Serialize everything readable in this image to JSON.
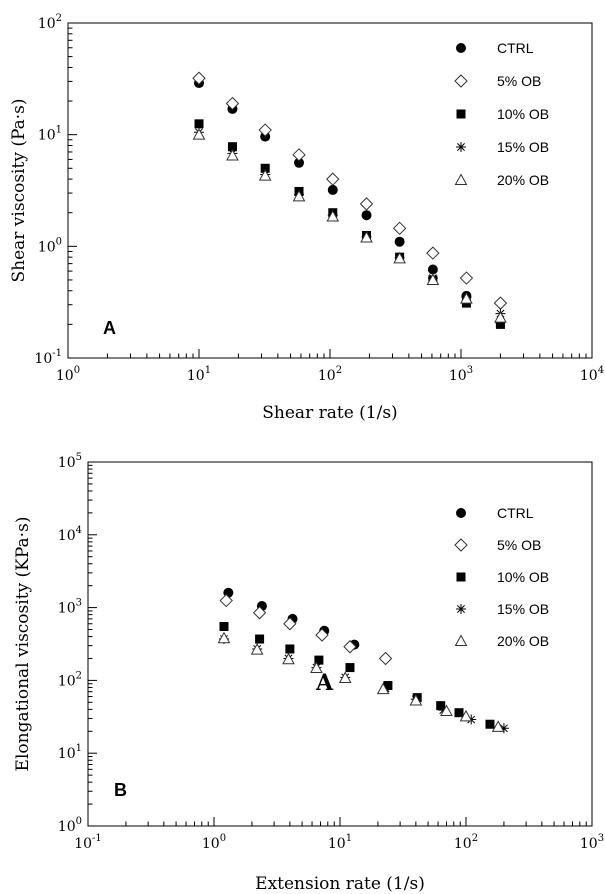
{
  "chart_data": [
    {
      "type": "scatter",
      "panel_label": "A",
      "xlabel": "Shear rate (1/s)",
      "ylabel": "Shear viscosity (Pa·s)",
      "xscale": "log",
      "yscale": "log",
      "xlim": [
        1,
        10000
      ],
      "ylim": [
        0.1,
        100
      ],
      "x_ticks": [
        {
          "base": "10",
          "exp": "0",
          "value": 1
        },
        {
          "base": "10",
          "exp": "1",
          "value": 10
        },
        {
          "base": "10",
          "exp": "2",
          "value": 100
        },
        {
          "base": "10",
          "exp": "3",
          "value": 1000
        },
        {
          "base": "10",
          "exp": "4",
          "value": 10000
        }
      ],
      "y_ticks": [
        {
          "base": "10",
          "exp": "-1",
          "value": 0.1
        },
        {
          "base": "10",
          "exp": "0",
          "value": 1
        },
        {
          "base": "10",
          "exp": "1",
          "value": 10
        },
        {
          "base": "10",
          "exp": "2",
          "value": 100
        }
      ],
      "grid": false,
      "legend_position": "top-right",
      "series": [
        {
          "name": "CTRL",
          "marker": "circle",
          "x": [
            10,
            18,
            32,
            58,
            105,
            190,
            340,
            610,
            1100,
            2000
          ],
          "y": [
            29,
            17,
            9.6,
            5.6,
            3.2,
            1.9,
            1.1,
            0.62,
            0.36,
            0.21
          ]
        },
        {
          "name": "5% OB",
          "marker": "diamond",
          "x": [
            10,
            18,
            32,
            58,
            105,
            190,
            340,
            610,
            1100,
            2000
          ],
          "y": [
            32,
            19,
            11,
            6.6,
            4.0,
            2.4,
            1.45,
            0.87,
            0.52,
            0.31
          ]
        },
        {
          "name": "10% OB",
          "marker": "square",
          "x": [
            10,
            18,
            32,
            58,
            105,
            190,
            340,
            610,
            1100,
            2000
          ],
          "y": [
            12.5,
            7.8,
            5.0,
            3.1,
            2.0,
            1.25,
            0.8,
            0.5,
            0.31,
            0.2
          ]
        },
        {
          "name": "15% OB",
          "marker": "asterisk",
          "x": [
            10,
            18,
            32,
            58,
            105,
            190,
            340,
            610,
            1100,
            2000
          ],
          "y": [
            10.5,
            6.8,
            4.4,
            2.9,
            1.9,
            1.22,
            0.79,
            0.52,
            0.35,
            0.25
          ]
        },
        {
          "name": "20% OB",
          "marker": "triangle",
          "x": [
            10,
            18,
            32,
            58,
            105,
            190,
            340,
            610,
            1100,
            2000
          ],
          "y": [
            10,
            6.5,
            4.3,
            2.8,
            1.85,
            1.2,
            0.78,
            0.5,
            0.34,
            0.23
          ]
        }
      ]
    },
    {
      "type": "scatter",
      "panel_label": "B",
      "overlay_label": "A",
      "xlabel": "Extension rate (1/s)",
      "ylabel": "Elongational viscosity (KPa·s)",
      "xscale": "log",
      "yscale": "log",
      "xlim": [
        0.1,
        1000
      ],
      "ylim": [
        1,
        100000
      ],
      "x_ticks": [
        {
          "base": "10",
          "exp": "-1",
          "value": 0.1
        },
        {
          "base": "10",
          "exp": "0",
          "value": 1
        },
        {
          "base": "10",
          "exp": "1",
          "value": 10
        },
        {
          "base": "10",
          "exp": "2",
          "value": 100
        },
        {
          "base": "10",
          "exp": "3",
          "value": 1000
        }
      ],
      "y_ticks": [
        {
          "base": "10",
          "exp": "0",
          "value": 1
        },
        {
          "base": "10",
          "exp": "1",
          "value": 10
        },
        {
          "base": "10",
          "exp": "2",
          "value": 100
        },
        {
          "base": "10",
          "exp": "3",
          "value": 1000
        },
        {
          "base": "10",
          "exp": "4",
          "value": 10000
        },
        {
          "base": "10",
          "exp": "5",
          "value": 100000
        }
      ],
      "grid": false,
      "legend_position": "top-right",
      "series": [
        {
          "name": "CTRL",
          "marker": "circle",
          "x": [
            1.3,
            2.4,
            4.2,
            7.5,
            13
          ],
          "y": [
            1600,
            1050,
            700,
            480,
            310
          ]
        },
        {
          "name": "5% OB",
          "marker": "diamond",
          "x": [
            1.25,
            2.3,
            4.0,
            7.2,
            12,
            23
          ],
          "y": [
            1250,
            850,
            600,
            420,
            290,
            200
          ]
        },
        {
          "name": "10% OB",
          "marker": "square",
          "x": [
            1.2,
            2.3,
            4.0,
            6.8,
            12,
            24,
            41,
            63,
            88,
            155
          ],
          "y": [
            550,
            370,
            270,
            190,
            150,
            85,
            58,
            45,
            36,
            25
          ]
        },
        {
          "name": "15% OB",
          "marker": "asterisk",
          "x": [
            1.2,
            2.2,
            3.9,
            6.5,
            11,
            23,
            40,
            66,
            110,
            200
          ],
          "y": [
            370,
            270,
            200,
            150,
            110,
            78,
            55,
            39,
            29,
            22
          ]
        },
        {
          "name": "20% OB",
          "marker": "triangle",
          "x": [
            1.2,
            2.2,
            3.9,
            6.5,
            11,
            22,
            40,
            70,
            100,
            180
          ],
          "y": [
            380,
            265,
            195,
            148,
            108,
            76,
            53,
            38,
            32,
            23
          ]
        }
      ]
    }
  ]
}
